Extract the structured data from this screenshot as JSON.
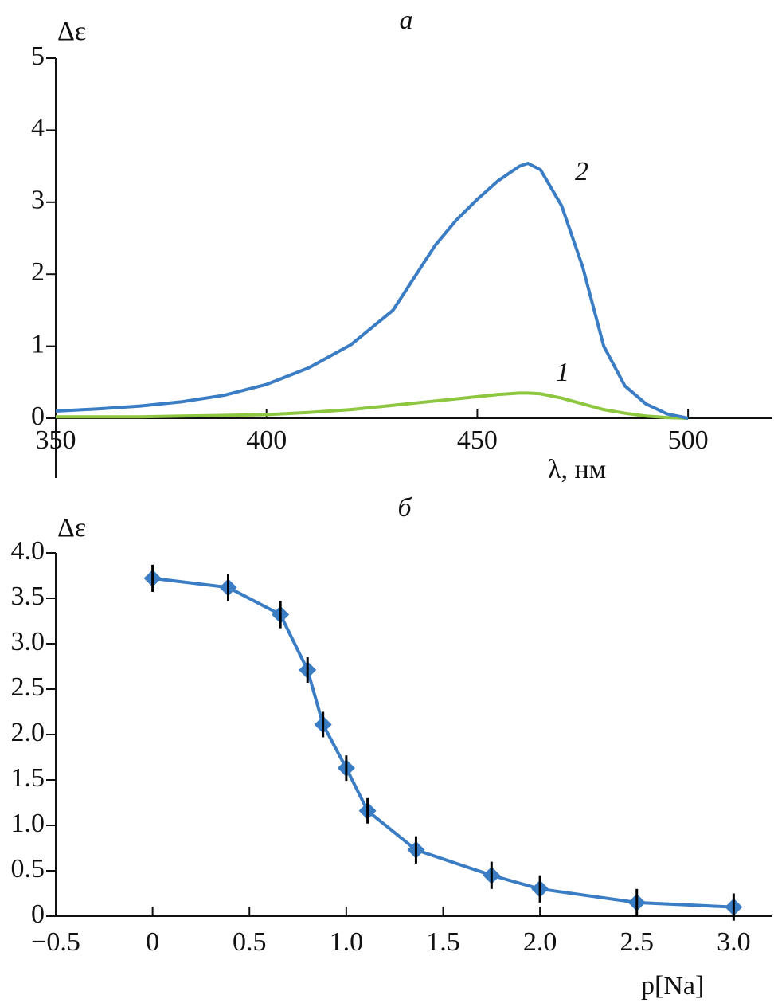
{
  "chart_data": [
    {
      "type": "line",
      "title": "а",
      "y_label": "Δε",
      "x_label": "λ, нм",
      "xlim": [
        350,
        520
      ],
      "ylim": [
        0,
        5
      ],
      "xticks": [
        350,
        400,
        450,
        500
      ],
      "yticks": [
        0,
        1,
        2,
        3,
        4,
        5
      ],
      "x": [
        350,
        360,
        370,
        380,
        390,
        400,
        410,
        420,
        430,
        440,
        445,
        450,
        455,
        460,
        462,
        465,
        470,
        475,
        480,
        485,
        490,
        495,
        500
      ],
      "series": [
        {
          "name": "1",
          "color": "#8dc63f",
          "values": [
            0.02,
            0.02,
            0.02,
            0.03,
            0.04,
            0.05,
            0.08,
            0.12,
            0.18,
            0.24,
            0.27,
            0.3,
            0.33,
            0.35,
            0.35,
            0.34,
            0.28,
            0.2,
            0.12,
            0.07,
            0.03,
            0.01,
            0
          ]
        },
        {
          "name": "2",
          "color": "#3a7dc4",
          "values": [
            0.1,
            0.13,
            0.17,
            0.23,
            0.32,
            0.47,
            0.7,
            1.02,
            1.5,
            2.4,
            2.75,
            3.04,
            3.3,
            3.5,
            3.54,
            3.45,
            2.95,
            2.1,
            1.0,
            0.45,
            0.2,
            0.06,
            0
          ]
        }
      ]
    },
    {
      "type": "line",
      "title": "б",
      "y_label": "Δε",
      "x_label": "p[Na]",
      "xlim": [
        -0.5,
        3.2
      ],
      "ylim": [
        0,
        4
      ],
      "xticks": [
        {
          "value": -0.5,
          "label": "−0.5"
        },
        0,
        0.5,
        {
          "value": 1,
          "label": "1.0"
        },
        1.5,
        {
          "value": 2,
          "label": "2.0"
        },
        2.5,
        {
          "value": 3,
          "label": "3.0"
        }
      ],
      "yticks": [
        0,
        0.5,
        {
          "value": 1,
          "label": "1.0"
        },
        1.5,
        {
          "value": 2,
          "label": "2.0"
        },
        2.5,
        {
          "value": 3,
          "label": "3.0"
        },
        3.5,
        {
          "value": 4,
          "label": "4.0"
        }
      ],
      "x": [
        0,
        0.39,
        0.66,
        0.8,
        0.88,
        1.0,
        1.11,
        1.36,
        1.75,
        2.0,
        2.5,
        3.0
      ],
      "series": [
        {
          "color": "#3a7dc4",
          "markers": true,
          "values": [
            3.72,
            3.62,
            3.32,
            2.71,
            2.11,
            1.63,
            1.16,
            0.73,
            0.45,
            0.3,
            0.15,
            0.1
          ],
          "errors": [
            0.15,
            0.15,
            0.15,
            0.14,
            0.14,
            0.14,
            0.14,
            0.15,
            0.15,
            0.15,
            0.15,
            0.15
          ]
        }
      ]
    }
  ]
}
